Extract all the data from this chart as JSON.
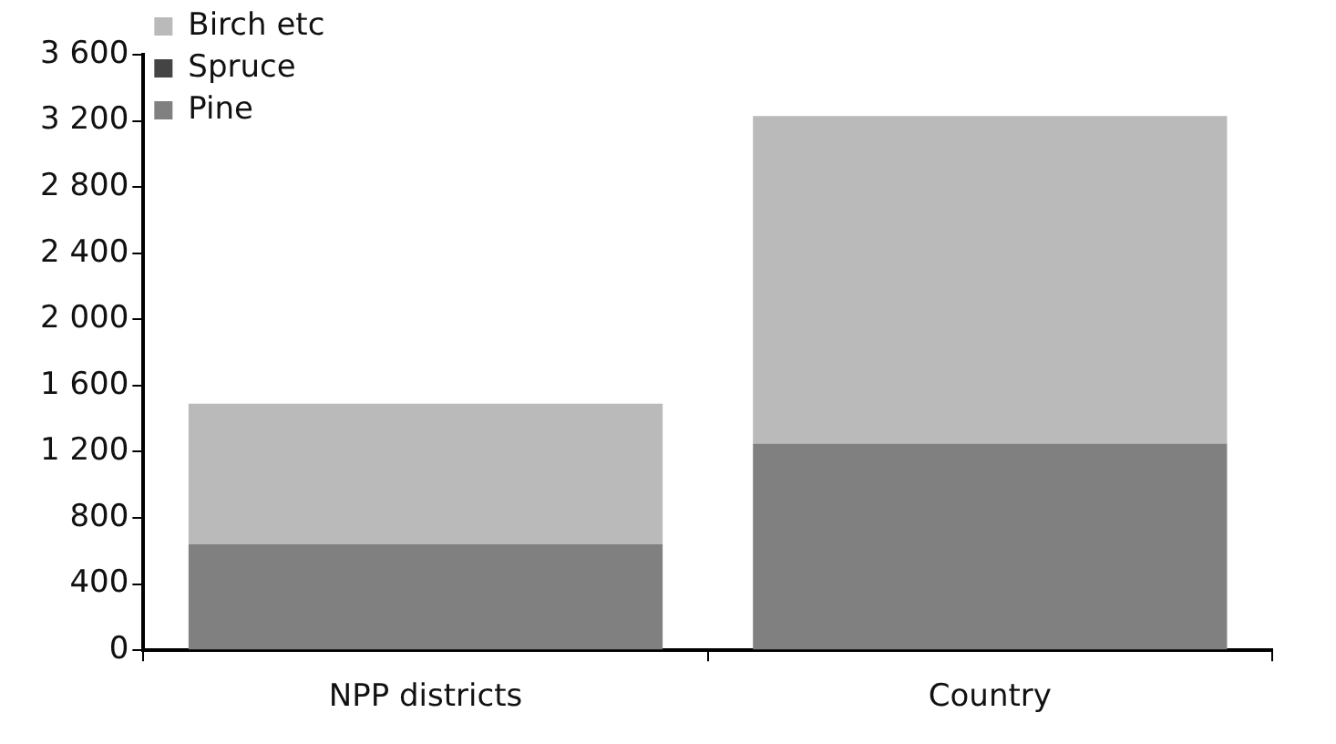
{
  "chart_data": {
    "type": "bar",
    "stacked": true,
    "categories": [
      "NPP districts",
      "Country"
    ],
    "series": [
      {
        "name": "Pine",
        "color": "#808080",
        "values": [
          640,
          1250
        ]
      },
      {
        "name": "Spruce",
        "color": "#444444",
        "values": [
          0,
          0
        ]
      },
      {
        "name": "Birch etc",
        "color": "#bababa",
        "values": [
          850,
          1980
        ]
      }
    ],
    "ylim": [
      0,
      3600
    ],
    "yticks": [
      0,
      {
        "value": 400,
        "label": "400"
      },
      {
        "value": 800,
        "label": "800"
      },
      {
        "value": 1200,
        "label": "1 200"
      },
      {
        "value": 1600,
        "label": "1 600"
      },
      {
        "value": 2000,
        "label": "2 000"
      },
      {
        "value": 2400,
        "label": "2 400"
      },
      {
        "value": 2800,
        "label": "2 800"
      },
      {
        "value": 3200,
        "label": "3 200"
      },
      {
        "value": 3600,
        "label": "3 600"
      }
    ],
    "grid": false,
    "legend": "top left"
  }
}
